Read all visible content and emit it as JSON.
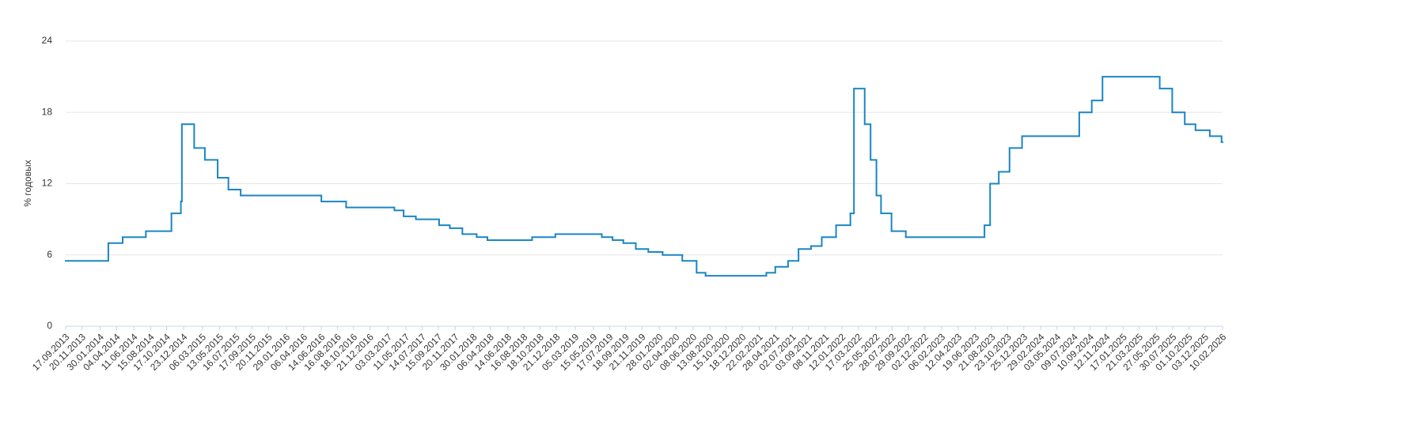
{
  "chart_data": {
    "type": "step-line",
    "y_label": "% годовых",
    "ylim": [
      0,
      24
    ],
    "yticks": [
      0,
      6,
      12,
      18,
      24
    ],
    "grid": true,
    "xlim": [
      "17.09.2013",
      "10.02.2026"
    ],
    "xticks": [
      "17.09.2013",
      "20.11.2013",
      "30.01.2014",
      "04.04.2014",
      "11.06.2014",
      "15.08.2014",
      "17.10.2014",
      "23.12.2014",
      "06.03.2015",
      "13.05.2015",
      "16.07.2015",
      "17.09.2015",
      "20.11.2015",
      "29.01.2016",
      "06.04.2016",
      "14.06.2016",
      "16.08.2016",
      "18.10.2016",
      "21.12.2016",
      "03.03.2017",
      "11.05.2017",
      "14.07.2017",
      "15.09.2017",
      "20.11.2017",
      "30.01.2018",
      "06.04.2018",
      "14.06.2018",
      "16.08.2018",
      "18.10.2018",
      "21.12.2018",
      "05.03.2019",
      "15.05.2019",
      "17.07.2019",
      "18.09.2019",
      "21.11.2019",
      "28.01.2020",
      "02.04.2020",
      "08.06.2020",
      "13.08.2020",
      "15.10.2020",
      "18.12.2020",
      "22.02.2021",
      "28.04.2021",
      "02.07.2021",
      "03.09.2021",
      "08.11.2021",
      "12.01.2022",
      "17.03.2022",
      "25.05.2022",
      "28.07.2022",
      "29.09.2022",
      "02.12.2022",
      "06.02.2023",
      "12.04.2023",
      "19.06.2023",
      "21.08.2023",
      "23.10.2023",
      "25.12.2023",
      "29.02.2024",
      "03.05.2024",
      "09.07.2024",
      "10.09.2024",
      "12.11.2024",
      "17.01.2025",
      "21.03.2025",
      "27.05.2025",
      "30.07.2025",
      "01.10.2025",
      "03.12.2025",
      "10.02.2026"
    ],
    "x": [
      "17.09.2013",
      "03.03.2014",
      "28.04.2014",
      "28.07.2014",
      "05.11.2014",
      "12.12.2014",
      "16.12.2014",
      "02.02.2015",
      "16.03.2015",
      "05.05.2015",
      "16.06.2015",
      "03.08.2015",
      "14.06.2016",
      "19.09.2016",
      "27.03.2017",
      "02.05.2017",
      "19.06.2017",
      "18.09.2017",
      "30.10.2017",
      "18.12.2017",
      "12.02.2018",
      "26.03.2018",
      "17.09.2018",
      "17.12.2018",
      "17.06.2019",
      "29.07.2019",
      "09.09.2019",
      "28.10.2019",
      "16.12.2019",
      "10.02.2020",
      "27.04.2020",
      "22.06.2020",
      "27.07.2020",
      "22.03.2021",
      "26.04.2021",
      "15.06.2021",
      "26.07.2021",
      "13.09.2021",
      "25.10.2021",
      "20.12.2021",
      "14.02.2022",
      "28.02.2022",
      "11.04.2022",
      "04.05.2022",
      "27.05.2022",
      "14.06.2022",
      "25.07.2022",
      "19.09.2022",
      "24.07.2023",
      "15.08.2023",
      "18.09.2023",
      "30.10.2023",
      "18.12.2023",
      "29.07.2024",
      "16.09.2024",
      "28.10.2024",
      "09.06.2025",
      "28.07.2025",
      "15.09.2025",
      "27.10.2025",
      "22.12.2025",
      "06.02.2026"
    ],
    "series": [
      {
        "color": "#1a86c4",
        "values": [
          5.5,
          7,
          7.5,
          8,
          9.5,
          10.5,
          17,
          15,
          14,
          12.5,
          11.5,
          11,
          10.5,
          10,
          9.75,
          9.25,
          9,
          8.5,
          8.25,
          7.75,
          7.5,
          7.25,
          7.5,
          7.75,
          7.5,
          7.25,
          7,
          6.5,
          6.25,
          6,
          5.5,
          4.5,
          4.25,
          4.5,
          5,
          5.5,
          6.5,
          6.75,
          7.5,
          8.5,
          9.5,
          20,
          17,
          14,
          11,
          9.5,
          8,
          7.5,
          8.5,
          12,
          13,
          15,
          16,
          18,
          19,
          21,
          20,
          18,
          17,
          16.5,
          16,
          15.5
        ]
      }
    ]
  }
}
